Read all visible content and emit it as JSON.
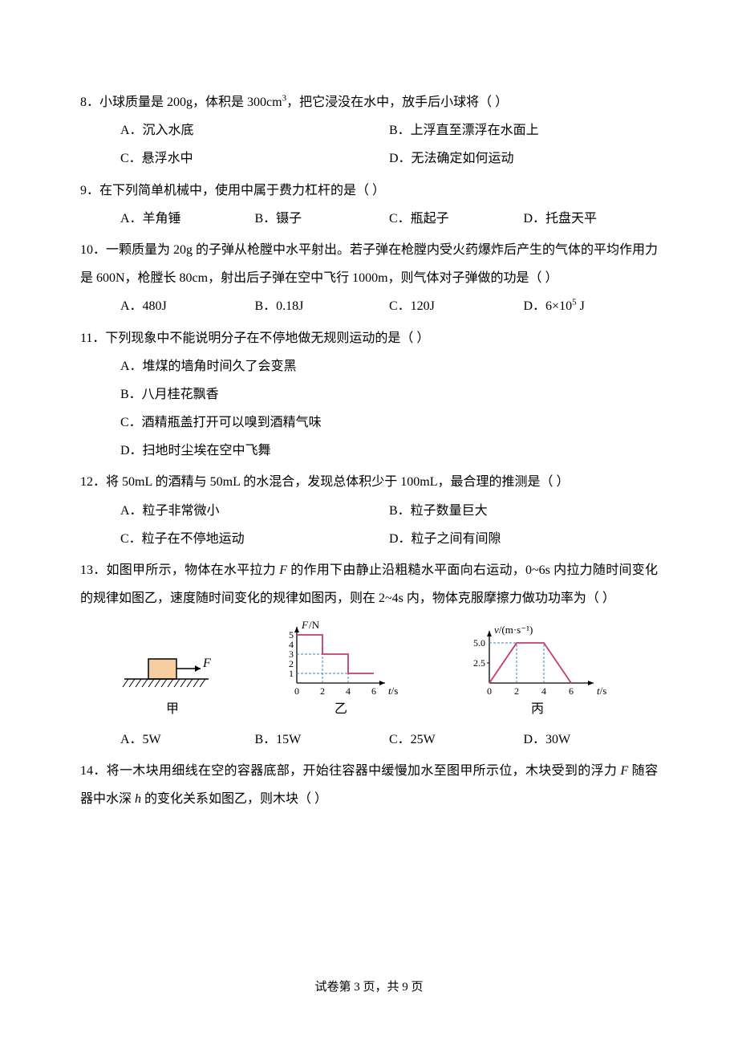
{
  "q8": {
    "text_prefix": "8．小球质量是 200g，体积是 300cm",
    "text_suffix": "，把它浸没在水中，放手后小球将（   ）",
    "optA": "A．沉入水底",
    "optB": "B．上浮直至漂浮在水面上",
    "optC": "C．悬浮水中",
    "optD": "D．无法确定如何运动"
  },
  "q9": {
    "text": "9．在下列简单机械中，使用中属于费力杠杆的是（       ）",
    "optA": "A．羊角锤",
    "optB": "B．镊子",
    "optC": "C．瓶起子",
    "optD": "D．托盘天平"
  },
  "q10": {
    "text": "10．一颗质量为 20g 的子弹从枪膛中水平射出。若子弹在枪膛内受火药爆炸后产生的气体的平均作用力是 600N，枪膛长 80cm，射出后子弹在空中飞行 1000m，则气体对子弹做的功是（       ）",
    "optA": "A．480J",
    "optB": "B．0.18J",
    "optC": "C．120J",
    "optD_prefix": "D．6×10",
    "optD_suffix": " J"
  },
  "q11": {
    "text": "11．下列现象中不能说明分子在不停地做无规则运动的是（       ）",
    "optA": "A．堆煤的墙角时间久了会变黑",
    "optB": "B．八月桂花飘香",
    "optC": "C．酒精瓶盖打开可以嗅到酒精气味",
    "optD": "D．扫地时尘埃在空中飞舞"
  },
  "q12": {
    "text": "12．将 50mL 的酒精与 50mL 的水混合，发现总体积少于 100mL，最合理的推测是（       ）",
    "optA": "A．粒子非常微小",
    "optB": "B．粒子数量巨大",
    "optC": "C．粒子在不停地运动",
    "optD": "D．粒子之间有间隙"
  },
  "q13": {
    "text_p1": "13．如图甲所示，物体在水平拉力 ",
    "text_p2": " 的作用下由静止沿粗糙水平面向右运动，0~6s 内拉力随时间变化的规律如图乙，速度随时间变化的规律如图丙，则在 2~4s 内，物体克服摩擦力做功功率为（ ）",
    "labelA": "甲",
    "labelB": "乙",
    "labelC": "丙",
    "optA": "A．5W",
    "optB": "B．15W",
    "optC": "C．25W",
    "optD": "D．30W",
    "chart_yi": {
      "ylabel": "F/N",
      "xlabel": "t/s",
      "yticks": [
        "1",
        "2",
        "3",
        "4",
        "5"
      ],
      "xticks": [
        "0",
        "2",
        "4",
        "6"
      ],
      "steps": [
        [
          0,
          5
        ],
        [
          2,
          5
        ],
        [
          2,
          3
        ],
        [
          4,
          3
        ],
        [
          4,
          1
        ],
        [
          6,
          1
        ]
      ],
      "axis_color": "#000000",
      "dash_color": "#3b7ecb",
      "line_color": "#c73b6b"
    },
    "chart_bing": {
      "ylabel": "v/(m·s⁻¹)",
      "xlabel": "t/s",
      "yticks": [
        "2.5",
        "5.0"
      ],
      "xticks": [
        "0",
        "2",
        "4",
        "6"
      ],
      "points": [
        [
          0,
          0
        ],
        [
          2,
          5
        ],
        [
          4,
          5
        ],
        [
          6,
          0
        ]
      ],
      "axis_color": "#000000",
      "dash_color": "#3b7ecb",
      "line_color": "#c73b6b"
    },
    "diagram_jia": {
      "block_fill": "#f5cda0",
      "block_stroke": "#000000",
      "force_label": "F"
    }
  },
  "q14": {
    "text_p1": "14．将一木块用细线在空的容器底部，开始往容器中缓慢加水至图甲所示位，木块受到的浮力 ",
    "text_p2": " 随容器中水深 ",
    "text_p3": " 的变化关系如图乙，则木块（       ）"
  },
  "footer": "试卷第 3 页，共 9 页"
}
